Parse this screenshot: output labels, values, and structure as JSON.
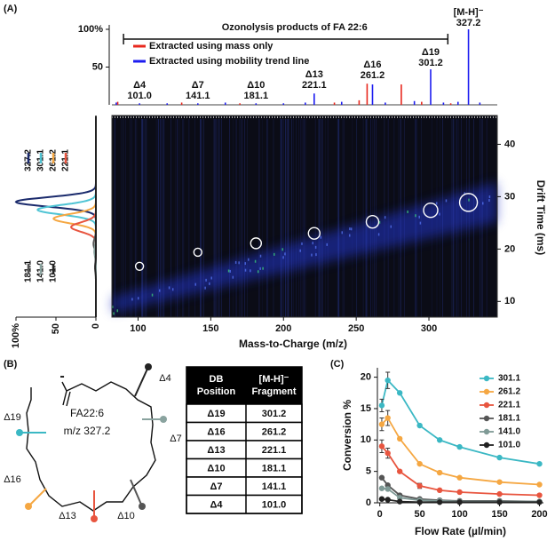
{
  "panel_labels": [
    "(A)",
    "(B)",
    "(C)"
  ],
  "chart_data": [
    {
      "type": "spectrum",
      "xlim": [
        82,
        347
      ],
      "ylim": [
        0,
        100
      ],
      "yticks": [
        {
          "value": 100,
          "label": "100%"
        },
        50
      ],
      "bracket": {
        "text": "Ozonolysis products of FA 22:6",
        "range": [
          90,
          313
        ]
      },
      "series": [
        {
          "name": "Extracted using mass only",
          "color": "#e8281e",
          "x": [
            86,
            130,
            170,
            235,
            252,
            257.5,
            281,
            295,
            315
          ],
          "values": [
            4,
            3,
            2,
            3,
            6,
            28,
            27,
            4,
            2
          ]
        },
        {
          "name": "Extracted using mobility trend line",
          "color": "#1c1cf0",
          "x": [
            85,
            101,
            120,
            141.1,
            160,
            181.1,
            200,
            215,
            221.1,
            240,
            261.2,
            270,
            290,
            301.2,
            310,
            320,
            327.2,
            335
          ],
          "values": [
            3,
            2,
            2,
            2,
            3,
            2,
            2,
            3,
            15,
            4,
            27,
            3,
            5,
            47,
            3,
            4,
            100,
            3
          ]
        }
      ],
      "annotations": [
        {
          "text": "Δ4",
          "value": 101,
          "label": "101.0"
        },
        {
          "text": "Δ7",
          "value": 141.1,
          "label": "141.1"
        },
        {
          "text": "Δ10",
          "value": 181.1,
          "label": "181.1"
        },
        {
          "text": "Δ13",
          "value": 221.1,
          "label": "221.1"
        },
        {
          "text": "Δ16",
          "value": 261.2,
          "label": "261.2"
        },
        {
          "text": "Δ19",
          "value": 301.2,
          "label": "301.2"
        },
        {
          "text": "[M-H]⁻",
          "value": 327.2,
          "label": "327.2"
        }
      ]
    },
    {
      "type": "heatmap",
      "xlabel": "Mass-to-Charge (m/z)",
      "ylabel": "Drift Time (ms)",
      "xlim": [
        82,
        347
      ],
      "ylim": [
        7,
        45.5
      ],
      "xticks": [
        100,
        150,
        200,
        250,
        300
      ],
      "yticks": [
        10,
        20,
        30,
        40
      ],
      "x": [
        101,
        141.1,
        181.1,
        221.1,
        261.2,
        301.2,
        327.2
      ],
      "y": [
        16.7,
        19.4,
        21.1,
        23,
        25.2,
        27.4,
        28.9
      ],
      "sizes": [
        4.5,
        4.5,
        6,
        6.5,
        7,
        8,
        10
      ]
    },
    {
      "type": "mobilogram",
      "xlim": [
        100,
        0
      ],
      "ylim": [
        7,
        45.5
      ],
      "xticks": [
        {
          "value": 100,
          "label": "100%"
        },
        50,
        0
      ],
      "series": [
        {
          "name": "327.2",
          "color": "#1a2a6c",
          "center": 29,
          "peak": 100
        },
        {
          "name": "301.1",
          "color": "#4fc4d4",
          "center": 27.5,
          "peak": 73
        },
        {
          "name": "261.2",
          "color": "#f5a742",
          "center": 25.8,
          "peak": 53
        },
        {
          "name": "221.1",
          "color": "#e8553f",
          "center": 24.2,
          "peak": 31
        },
        {
          "name": "181.1",
          "color": "#555555",
          "center": 21,
          "peak": 3
        },
        {
          "name": "141.0",
          "color": "#8aa39f",
          "center": 19.5,
          "peak": 2
        },
        {
          "name": "101.0",
          "color": "#222222",
          "center": 16.5,
          "peak": 1
        }
      ]
    },
    {
      "type": "line",
      "xlabel": "Flow Rate (µl/min)",
      "ylabel": "Conversion %",
      "xlim": [
        -3,
        205
      ],
      "ylim": [
        0,
        21.5
      ],
      "xticks": [
        0,
        50,
        100,
        150,
        200
      ],
      "yticks": [
        0,
        5,
        10,
        15,
        20
      ],
      "legend": "upper right",
      "x": [
        2.5,
        10,
        25,
        50,
        75,
        100,
        150,
        200
      ],
      "series": [
        {
          "name": "301.1",
          "color": "#3bb8c4",
          "values": [
            15.5,
            19.5,
            17.5,
            12.3,
            10,
            8.9,
            7.2,
            6.2
          ],
          "errors": [
            1,
            1.3,
            null,
            null,
            null,
            null,
            null,
            null
          ]
        },
        {
          "name": "261.2",
          "color": "#f5a742",
          "values": [
            12.5,
            13.5,
            10.2,
            6.2,
            4.8,
            4,
            3.3,
            2.9
          ],
          "errors": [
            1,
            1.2,
            null,
            null,
            null,
            null,
            null,
            null
          ]
        },
        {
          "name": "221.1",
          "color": "#e8553f",
          "values": [
            9,
            7.9,
            5,
            2.7,
            2,
            1.7,
            1.4,
            1.2
          ],
          "errors": [
            1,
            0.8,
            null,
            0.4,
            null,
            null,
            null,
            null
          ]
        },
        {
          "name": "181.1",
          "color": "#555555",
          "values": [
            4,
            2.8,
            1.2,
            0.6,
            0.4,
            0.3,
            0.3,
            0.2
          ],
          "errors": [
            null,
            null,
            null,
            null,
            null,
            null,
            null,
            null
          ]
        },
        {
          "name": "141.0",
          "color": "#7f9a96",
          "values": [
            2.3,
            2.2,
            0.8,
            0.4,
            0.3,
            0.2,
            0.2,
            0.2
          ],
          "errors": [
            null,
            null,
            null,
            null,
            null,
            null,
            null,
            null
          ]
        },
        {
          "name": "101.0",
          "color": "#222222",
          "values": [
            0.6,
            0.5,
            0.2,
            0.1,
            0.1,
            0.1,
            0.1,
            0.1
          ],
          "errors": [
            null,
            null,
            null,
            null,
            null,
            null,
            null,
            null
          ]
        }
      ]
    }
  ],
  "diagram": {
    "name": "FA22:6",
    "mz": "m/z 327.2",
    "charge": "-",
    "sites": [
      {
        "label": "Δ19",
        "color": "#3bb8c4"
      },
      {
        "label": "Δ16",
        "color": "#f5a742"
      },
      {
        "label": "Δ13",
        "color": "#e8553f"
      },
      {
        "label": "Δ10",
        "color": "#555555"
      },
      {
        "label": "Δ7",
        "color": "#8aa39f"
      },
      {
        "label": "Δ4",
        "color": "#222222"
      }
    ]
  },
  "table": {
    "header": [
      [
        "DB",
        "Position"
      ],
      [
        "[M-H]⁻",
        "Fragment"
      ]
    ],
    "rows": [
      [
        "Δ19",
        "301.2"
      ],
      [
        "Δ16",
        "261.2"
      ],
      [
        "Δ13",
        "221.1"
      ],
      [
        "Δ10",
        "181.1"
      ],
      [
        "Δ7",
        "141.1"
      ],
      [
        "Δ4",
        "101.0"
      ]
    ]
  }
}
